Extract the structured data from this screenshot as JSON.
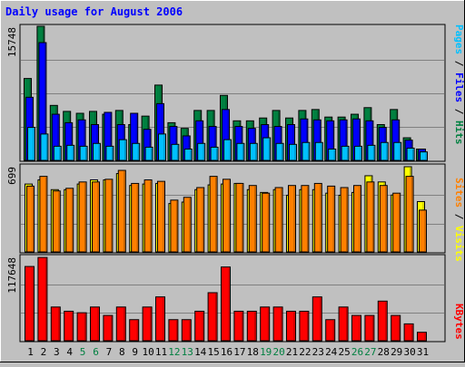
{
  "chart_data": [
    {
      "type": "bar",
      "title": "Daily usage for August 2006",
      "categories": [
        "1",
        "2",
        "3",
        "4",
        "5",
        "6",
        "7",
        "8",
        "9",
        "10",
        "11",
        "12",
        "13",
        "14",
        "15",
        "16",
        "17",
        "18",
        "19",
        "20",
        "21",
        "22",
        "23",
        "24",
        "25",
        "26",
        "27",
        "28",
        "29",
        "30",
        "31"
      ],
      "weekend_days": [
        "5",
        "6",
        "12",
        "13",
        "19",
        "20",
        "26",
        "27"
      ],
      "ylabel_parts": [
        "Pages",
        "Files",
        "Hits"
      ],
      "ymax_label": "15748",
      "ylim": [
        0,
        15748
      ],
      "series": [
        {
          "name": "Hits",
          "color": "#008040",
          "values": [
            9617,
            15748,
            6457,
            5752,
            5531,
            5752,
            5420,
            5863,
            4204,
            5199,
            8843,
            4426,
            3762,
            5863,
            5863,
            7632,
            4646,
            4646,
            4979,
            5863,
            4979,
            5863,
            5974,
            5088,
            5088,
            5420,
            6194,
            4204,
            5974,
            2655,
            1328
          ]
        },
        {
          "name": "Files",
          "color": "#0000ff",
          "values": [
            7412,
            13829,
            5420,
            4425,
            4758,
            4204,
            5641,
            4204,
            5531,
            3650,
            6664,
            3983,
            2876,
            4646,
            3983,
            5974,
            3983,
            3762,
            4201,
            3983,
            4204,
            4868,
            4758,
            4646,
            4758,
            4868,
            4646,
            3873,
            4758,
            2381,
            1328
          ]
        },
        {
          "name": "Pages",
          "color": "#00c0ff",
          "values": [
            3872,
            3097,
            1660,
            1771,
            1660,
            1992,
            1660,
            2434,
            1992,
            1549,
            3097,
            1881,
            1328,
            1992,
            1549,
            2434,
            1992,
            1992,
            2655,
            1992,
            1881,
            2102,
            2102,
            1328,
            1660,
            1660,
            1771,
            2102,
            2102,
            1438,
            996
          ]
        }
      ]
    },
    {
      "type": "bar",
      "categories": [
        "1",
        "2",
        "3",
        "4",
        "5",
        "6",
        "7",
        "8",
        "9",
        "10",
        "11",
        "12",
        "13",
        "14",
        "15",
        "16",
        "17",
        "18",
        "19",
        "20",
        "21",
        "22",
        "23",
        "24",
        "25",
        "26",
        "27",
        "28",
        "29",
        "30",
        "31"
      ],
      "ylabel_parts": [
        "Sites",
        "Visits"
      ],
      "ymax_label": "699",
      "ylim": [
        0,
        699
      ],
      "series": [
        {
          "name": "Visits",
          "color": "#ffff00",
          "values": [
            557,
            591,
            511,
            511,
            557,
            591,
            591,
            643,
            545,
            557,
            562,
            397,
            409,
            511,
            550,
            557,
            562,
            511,
            488,
            511,
            465,
            511,
            511,
            482,
            465,
            488,
            625,
            574,
            467,
            699,
            413
          ]
        },
        {
          "name": "Sites",
          "color": "#ff8000",
          "values": [
            540,
            620,
            500,
            522,
            574,
            574,
            596,
            669,
            562,
            591,
            579,
            425,
            448,
            528,
            620,
            596,
            562,
            545,
            482,
            528,
            545,
            545,
            562,
            540,
            528,
            545,
            574,
            545,
            482,
            620,
            343
          ]
        }
      ]
    },
    {
      "type": "bar",
      "categories": [
        "1",
        "2",
        "3",
        "4",
        "5",
        "6",
        "7",
        "8",
        "9",
        "10",
        "11",
        "12",
        "13",
        "14",
        "15",
        "16",
        "17",
        "18",
        "19",
        "20",
        "21",
        "22",
        "23",
        "24",
        "25",
        "26",
        "27",
        "28",
        "29",
        "30",
        "31"
      ],
      "ylabel_parts": [
        "KBytes"
      ],
      "ymax_label": "117648",
      "ylim": [
        0,
        117648
      ],
      "series": [
        {
          "name": "KBytes",
          "color": "#ff0000",
          "values": [
            103640,
            116227,
            47060,
            41177,
            39059,
            47060,
            35297,
            47060,
            29414,
            47060,
            61177,
            29414,
            29414,
            41177,
            67060,
            102936,
            41177,
            41177,
            47060,
            47060,
            41177,
            41177,
            61177,
            29414,
            47060,
            35297,
            35297,
            55295,
            35297,
            23531,
            11766
          ]
        }
      ]
    }
  ]
}
